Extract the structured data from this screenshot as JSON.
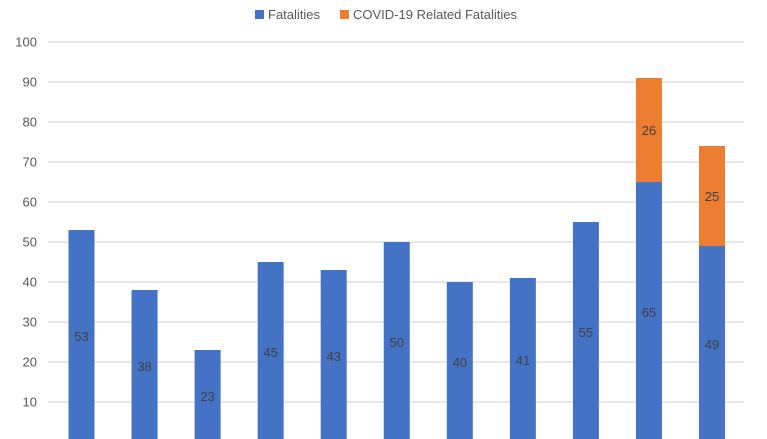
{
  "chart_data": {
    "type": "bar",
    "stacked": true,
    "title": "",
    "xlabel": "",
    "ylabel": "",
    "categories": [
      "",
      "",
      "",
      "",
      "",
      "",
      "",
      "",
      "",
      "",
      ""
    ],
    "ylim": [
      0,
      100
    ],
    "yticks": [
      10,
      20,
      30,
      40,
      50,
      60,
      70,
      80,
      90,
      100
    ],
    "grid": true,
    "legend_position": "top",
    "series": [
      {
        "name": "Fatalities",
        "color": "#4472C4",
        "values": [
          53,
          38,
          23,
          45,
          43,
          50,
          40,
          41,
          55,
          65,
          49
        ],
        "labels": [
          "53",
          "38",
          "23",
          "45",
          "43",
          "50",
          "40",
          "41",
          "55",
          "65",
          "49"
        ]
      },
      {
        "name": "COVID-19 Related Fatalities",
        "color": "#ED7D31",
        "values": [
          0,
          0,
          0,
          0,
          0,
          0,
          0,
          0,
          0,
          26,
          25
        ],
        "labels": [
          "",
          "",
          "",
          "",
          "",
          "",
          "",
          "",
          "",
          "26",
          "25"
        ]
      }
    ]
  }
}
